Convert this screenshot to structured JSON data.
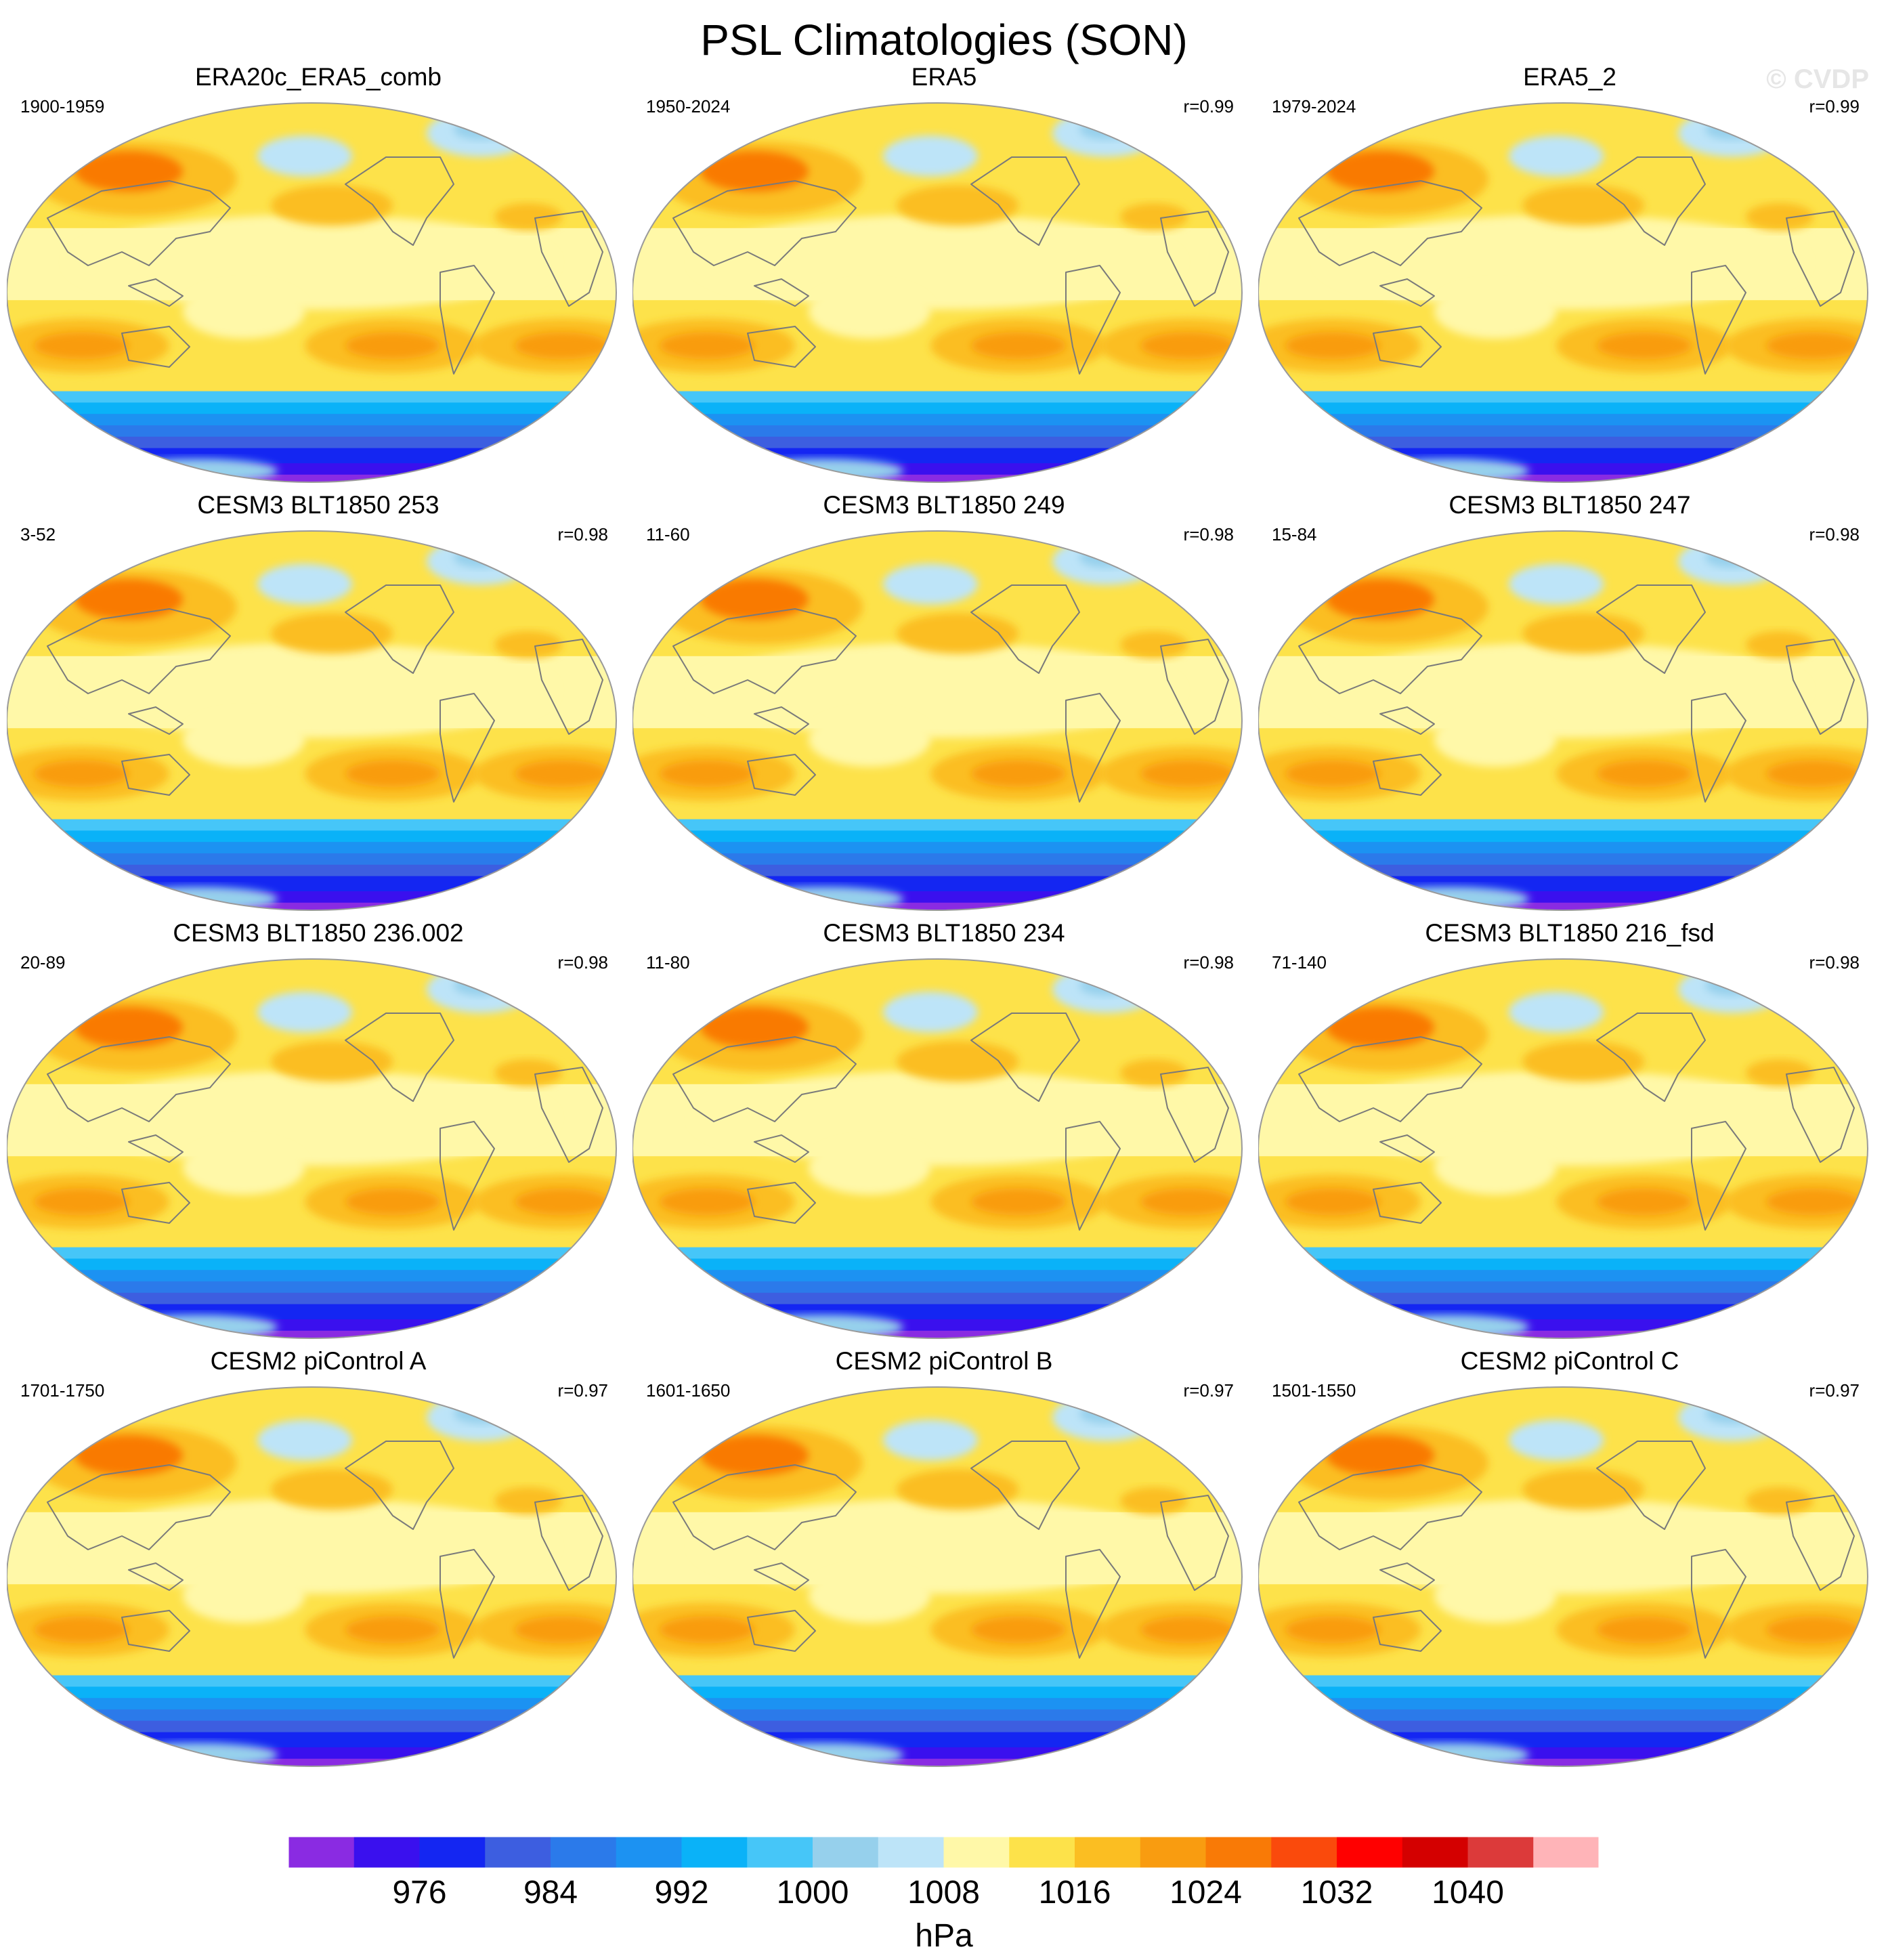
{
  "title": "PSL Climatologies (SON)",
  "watermark": "© CVDP",
  "colors": {
    "land_outline": "#7a7a7a",
    "map_border": "#9a9a9a"
  },
  "chart_data": {
    "type": "heatmap",
    "projection": "Robinson",
    "variable": "PSL",
    "season": "SON",
    "panels": [
      {
        "title": "ERA20c_ERA5_comb",
        "years": "1900-1959",
        "r": ""
      },
      {
        "title": "ERA5",
        "years": "1950-2024",
        "r": "r=0.99"
      },
      {
        "title": "ERA5_2",
        "years": "1979-2024",
        "r": "r=0.99"
      },
      {
        "title": "CESM3 BLT1850 253",
        "years": "3-52",
        "r": "r=0.98"
      },
      {
        "title": "CESM3 BLT1850 249",
        "years": "11-60",
        "r": "r=0.98"
      },
      {
        "title": "CESM3 BLT1850 247",
        "years": "15-84",
        "r": "r=0.98"
      },
      {
        "title": "CESM3 BLT1850 236.002",
        "years": "20-89",
        "r": "r=0.98"
      },
      {
        "title": "CESM3 BLT1850 234",
        "years": "11-80",
        "r": "r=0.98"
      },
      {
        "title": "CESM3 BLT1850 216_fsd",
        "years": "71-140",
        "r": "r=0.98"
      },
      {
        "title": "CESM2 piControl A",
        "years": "1701-1750",
        "r": "r=0.97"
      },
      {
        "title": "CESM2 piControl B",
        "years": "1601-1650",
        "r": "r=0.97"
      },
      {
        "title": "CESM2 piControl C",
        "years": "1501-1550",
        "r": "r=0.97"
      }
    ],
    "colorbar": {
      "units": "hPa",
      "tick_labels": [
        "976",
        "984",
        "992",
        "1000",
        "1008",
        "1016",
        "1024",
        "1032",
        "1040"
      ],
      "colors": [
        "#8a2be2",
        "#3a10ee",
        "#1426f2",
        "#3d5ee0",
        "#2b7aea",
        "#1c92f2",
        "#0ab2f8",
        "#46c6f8",
        "#96d0ec",
        "#bde4f8",
        "#fff8a8",
        "#fde24a",
        "#fbbe22",
        "#f99c10",
        "#f97a06",
        "#fa4a0c",
        "#ff0000",
        "#d40000",
        "#dc3a3a",
        "#ffb4b8"
      ]
    },
    "field_colors": {
      "tropics": "#fff8a8",
      "subtropical_high": "#fde24a",
      "high_core": "#fbbe22",
      "high_peak": "#f99c10",
      "siberian_peak": "#f97a06",
      "arctic_low": "#bde4f8",
      "low_light": "#96d0ec",
      "southern_ring": [
        "#46c6f8",
        "#0ab2f8",
        "#1c92f2",
        "#2b7aea",
        "#3d5ee0",
        "#1426f2",
        "#3a10ee",
        "#8a2be2"
      ]
    }
  }
}
